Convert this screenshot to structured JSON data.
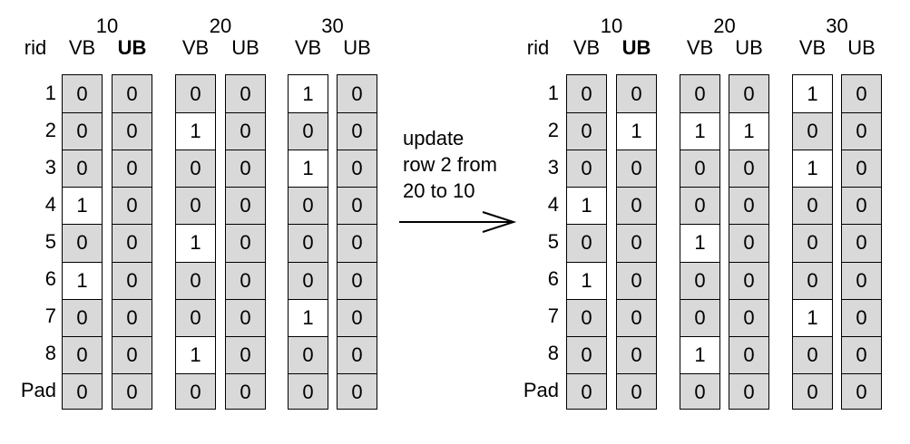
{
  "labels": {
    "rid": "rid",
    "vb": "VB",
    "ub": "UB",
    "groups": [
      "10",
      "20",
      "30"
    ]
  },
  "rows": [
    "1",
    "2",
    "3",
    "4",
    "5",
    "6",
    "7",
    "8",
    "Pad"
  ],
  "annotation": [
    "update",
    "row 2 from",
    "20 to 10"
  ],
  "left_table": {
    "columns": [
      {
        "group": "10",
        "type": "VB",
        "values": [
          "0",
          "0",
          "0",
          "1",
          "0",
          "1",
          "0",
          "0",
          "0"
        ]
      },
      {
        "group": "10",
        "type": "UB",
        "values": [
          "0",
          "0",
          "0",
          "0",
          "0",
          "0",
          "0",
          "0",
          "0"
        ]
      },
      {
        "group": "20",
        "type": "VB",
        "values": [
          "0",
          "1",
          "0",
          "0",
          "1",
          "0",
          "0",
          "1",
          "0"
        ]
      },
      {
        "group": "20",
        "type": "UB",
        "values": [
          "0",
          "0",
          "0",
          "0",
          "0",
          "0",
          "0",
          "0",
          "0"
        ]
      },
      {
        "group": "30",
        "type": "VB",
        "values": [
          "1",
          "0",
          "1",
          "0",
          "0",
          "0",
          "1",
          "0",
          "0"
        ]
      },
      {
        "group": "30",
        "type": "UB",
        "values": [
          "0",
          "0",
          "0",
          "0",
          "0",
          "0",
          "0",
          "0",
          "0"
        ]
      }
    ]
  },
  "right_table": {
    "columns": [
      {
        "group": "10",
        "type": "VB",
        "values": [
          "0",
          "0",
          "0",
          "1",
          "0",
          "1",
          "0",
          "0",
          "0"
        ]
      },
      {
        "group": "10",
        "type": "UB",
        "values": [
          "0",
          "1",
          "0",
          "0",
          "0",
          "0",
          "0",
          "0",
          "0"
        ]
      },
      {
        "group": "20",
        "type": "VB",
        "values": [
          "0",
          "1",
          "0",
          "0",
          "1",
          "0",
          "0",
          "1",
          "0"
        ]
      },
      {
        "group": "20",
        "type": "UB",
        "values": [
          "0",
          "1",
          "0",
          "0",
          "0",
          "0",
          "0",
          "0",
          "0"
        ]
      },
      {
        "group": "30",
        "type": "VB",
        "values": [
          "1",
          "0",
          "1",
          "0",
          "0",
          "0",
          "1",
          "0",
          "0"
        ]
      },
      {
        "group": "30",
        "type": "UB",
        "values": [
          "0",
          "0",
          "0",
          "0",
          "0",
          "0",
          "0",
          "0",
          "0"
        ]
      }
    ]
  },
  "colors": {
    "zero_cell": "#d9d9d9",
    "one_cell": "#ffffff",
    "border": "#000000"
  }
}
